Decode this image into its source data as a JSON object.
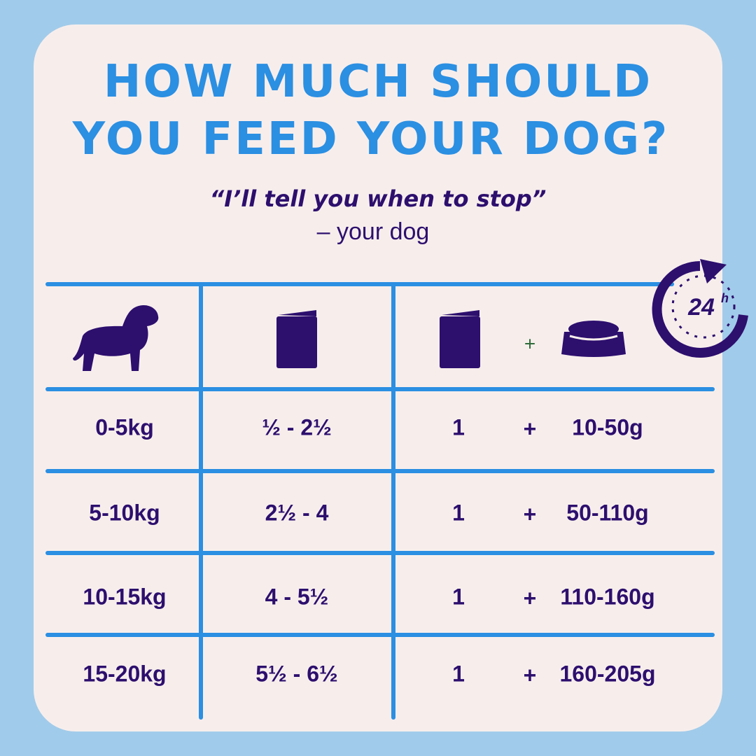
{
  "title": {
    "lines": [
      "HOW MUCH SHOULD",
      "YOU FEED YOUR DOG?"
    ]
  },
  "quote": "“I’ll tell you when to stop”",
  "attribution": "– your dog",
  "badge": {
    "number": "24",
    "unit": "h"
  },
  "header": {
    "plus": "+"
  },
  "table": {
    "rows": [
      [
        "0-5kg",
        "½  - 2½",
        "1",
        "+",
        "10-50g"
      ],
      [
        "5-10kg",
        "2½ - 4",
        "1",
        "+",
        "50-110g"
      ],
      [
        "10-15kg",
        "4 - 5½",
        "1",
        "+",
        "110-160g"
      ],
      [
        "15-20kg",
        "5½ - 6½",
        "1",
        "+",
        "160-205g"
      ]
    ]
  }
}
